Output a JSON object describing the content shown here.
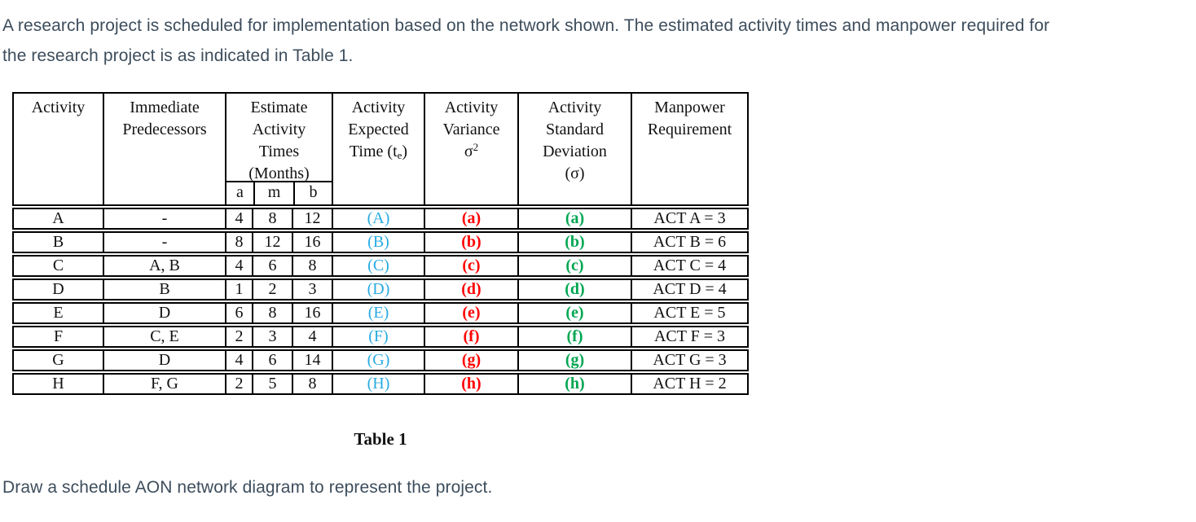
{
  "intro": {
    "line1": "A research project is scheduled for implementation based on the network shown. The estimated activity times and manpower required for",
    "line2": "the research project is as indicated in Table 1."
  },
  "table": {
    "caption": "Table 1",
    "headers": {
      "activity": "Activity",
      "predecessors_lines": [
        "Immediate",
        "Predecessors"
      ],
      "estimate_lines": [
        "Estimate",
        "Activity",
        "Times",
        "(Months)"
      ],
      "sub_a": "a",
      "sub_m": "m",
      "sub_b": "b",
      "expected_l1": "Activity",
      "expected_l2": "Expected",
      "expected_l3_pre": "Time (t",
      "expected_l3_sub": "e",
      "expected_l3_post": ")",
      "variance_l1": "Activity",
      "variance_l2": "Variance",
      "variance_sym": "σ",
      "variance_sup": "2",
      "std_lines": [
        "Activity",
        "Standard",
        "Deviation",
        "(σ)"
      ],
      "manpower_lines": [
        "Manpower",
        "Requirement"
      ]
    },
    "rows": [
      {
        "activity": "A",
        "pred": "-",
        "a": "4",
        "m": "8",
        "b": "12",
        "expected": "(A)",
        "variance": "(a)",
        "std": "(a)",
        "manpower": "ACT A = 3"
      },
      {
        "activity": "B",
        "pred": "-",
        "a": "8",
        "m": "12",
        "b": "16",
        "expected": "(B)",
        "variance": "(b)",
        "std": "(b)",
        "manpower": "ACT B = 6"
      },
      {
        "activity": "C",
        "pred": "A, B",
        "a": "4",
        "m": "6",
        "b": "8",
        "expected": "(C)",
        "variance": "(c)",
        "std": "(c)",
        "manpower": "ACT C = 4"
      },
      {
        "activity": "D",
        "pred": "B",
        "a": "1",
        "m": "2",
        "b": "3",
        "expected": "(D)",
        "variance": "(d)",
        "std": "(d)",
        "manpower": "ACT D = 4"
      },
      {
        "activity": "E",
        "pred": "D",
        "a": "6",
        "m": "8",
        "b": "16",
        "expected": "(E)",
        "variance": "(e)",
        "std": "(e)",
        "manpower": "ACT E = 5"
      },
      {
        "activity": "F",
        "pred": "C, E",
        "a": "2",
        "m": "3",
        "b": "4",
        "expected": "(F)",
        "variance": "(f)",
        "std": "(f)",
        "manpower": "ACT F = 3"
      },
      {
        "activity": "G",
        "pred": "D",
        "a": "4",
        "m": "6",
        "b": "14",
        "expected": "(G)",
        "variance": "(g)",
        "std": "(g)",
        "manpower": "ACT G = 3"
      },
      {
        "activity": "H",
        "pred": "F, G",
        "a": "2",
        "m": "5",
        "b": "8",
        "expected": "(H)",
        "variance": "(h)",
        "std": "(h)",
        "manpower": "ACT H = 2"
      }
    ]
  },
  "instruction": "Draw a schedule AON network diagram to represent the project.",
  "colors": {
    "expected_blue": "#29ABE2",
    "variance_red": "#FF0000",
    "std_green": "#00A651",
    "body_text": "#3D4D5C"
  }
}
